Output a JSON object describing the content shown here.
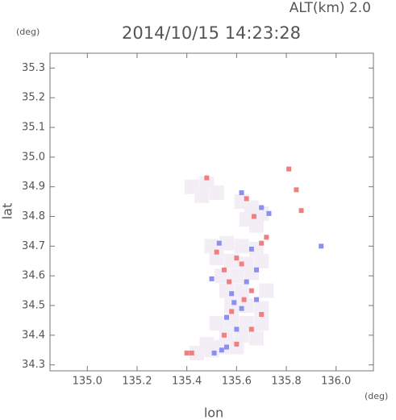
{
  "chart_data": {
    "type": "scatter",
    "title": "2014/10/15 14:23:28",
    "subtitle": "ALT(km) 2.0",
    "y_unit": "(deg)",
    "x_unit": "(deg)",
    "xlabel": "lon",
    "ylabel": "lat",
    "xlim": [
      134.85,
      136.15
    ],
    "ylim": [
      34.28,
      35.35
    ],
    "xticks": [
      {
        "value": 135,
        "label": "135.0"
      },
      135.2,
      135.4,
      135.6,
      135.8,
      {
        "value": 136,
        "label": "136.0"
      }
    ],
    "yticks": [
      35.3,
      35.2,
      35.1,
      {
        "value": 35,
        "label": "35.0"
      },
      34.9,
      34.8,
      34.7,
      34.6,
      34.5,
      34.4,
      34.3
    ],
    "series": [
      {
        "color": "#f3edf6",
        "x": [
          135.42,
          135.48,
          135.52,
          135.46,
          135.62,
          135.66,
          135.7,
          135.64,
          135.68,
          135.5,
          135.56,
          135.62,
          135.68,
          135.52,
          135.58,
          135.64,
          135.7,
          135.54,
          135.6,
          135.66,
          135.56,
          135.62,
          135.58,
          135.64,
          135.7,
          135.58,
          135.64,
          135.7,
          135.56,
          135.62,
          135.68,
          135.48,
          135.54,
          135.6,
          135.44,
          135.5,
          135.72,
          135.52
        ],
        "y": [
          34.9,
          34.91,
          34.88,
          34.87,
          34.85,
          34.83,
          34.81,
          34.79,
          34.77,
          34.7,
          34.71,
          34.7,
          34.69,
          34.66,
          34.65,
          34.64,
          34.65,
          34.6,
          34.6,
          34.61,
          34.55,
          34.55,
          34.5,
          34.5,
          34.49,
          34.45,
          34.44,
          34.44,
          34.4,
          34.4,
          34.39,
          34.37,
          34.36,
          34.36,
          34.34,
          34.35,
          34.55,
          34.44
        ]
      },
      {
        "color": "#f08080",
        "x": [
          135.4,
          135.42,
          135.55,
          135.57,
          135.6,
          135.63,
          135.58,
          135.66,
          135.7,
          135.55,
          135.62,
          135.67,
          135.84,
          135.86,
          135.81,
          135.52,
          135.66,
          135.7,
          135.48,
          135.6,
          135.64,
          135.72
        ],
        "y": [
          34.34,
          34.34,
          34.62,
          34.58,
          34.66,
          34.52,
          34.48,
          34.42,
          34.47,
          34.4,
          34.64,
          34.8,
          34.89,
          34.82,
          34.96,
          34.68,
          34.55,
          34.71,
          34.93,
          34.37,
          34.86,
          34.73
        ]
      },
      {
        "color": "#8a8ff0",
        "x": [
          135.58,
          135.62,
          135.56,
          135.51,
          135.64,
          135.68,
          135.6,
          135.53,
          135.7,
          135.73,
          135.94,
          135.66,
          135.59,
          135.56,
          135.68,
          135.54,
          135.62,
          135.5
        ],
        "y": [
          34.54,
          34.49,
          34.36,
          34.34,
          34.58,
          34.62,
          34.42,
          34.71,
          34.83,
          34.81,
          34.7,
          34.69,
          34.51,
          34.46,
          34.52,
          34.35,
          34.88,
          34.59
        ]
      }
    ]
  }
}
